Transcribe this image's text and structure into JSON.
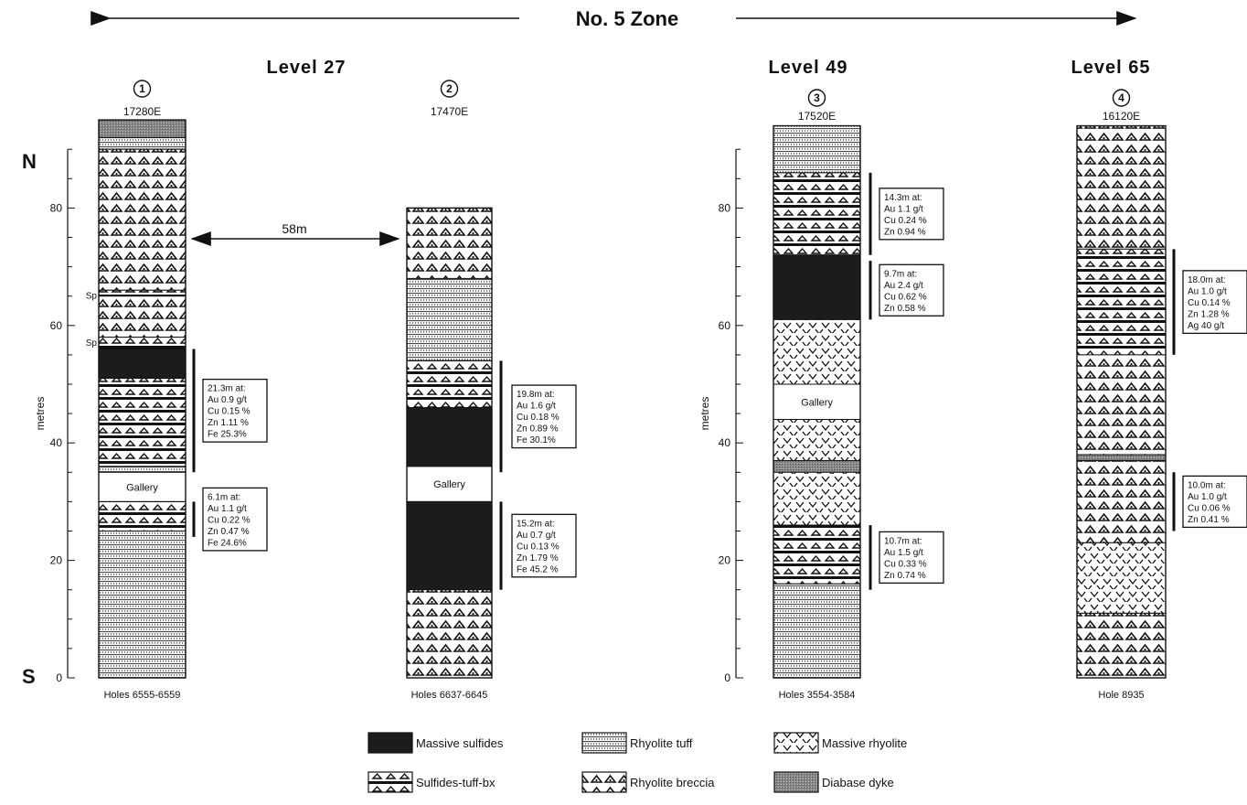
{
  "zone_title": "No. 5 Zone",
  "levels": [
    "Level 27",
    "Level 49",
    "Level 65"
  ],
  "axis": {
    "label": "metres",
    "ticks": [
      "0",
      "20",
      "40",
      "60",
      "80"
    ],
    "top": "N",
    "bottom": "S"
  },
  "columns": [
    {
      "id": 1,
      "circle": "1",
      "easting": "17280E",
      "hole": "Holes  6555-6559",
      "units": [
        {
          "top": 95,
          "bot": 92,
          "type": "diabase"
        },
        {
          "top": 92,
          "bot": 90,
          "type": "tuff"
        },
        {
          "top": 90,
          "bot": 66,
          "type": "breccia"
        },
        {
          "top": 66,
          "bot": 65,
          "type": "sulfbx"
        },
        {
          "top": 65,
          "bot": 58,
          "type": "breccia"
        },
        {
          "top": 58,
          "bot": 56,
          "type": "sulfbx"
        },
        {
          "top": 56,
          "bot": 51,
          "type": "massive"
        },
        {
          "top": 51,
          "bot": 36,
          "type": "sulfbx"
        },
        {
          "top": 36,
          "bot": 35,
          "type": "tuff"
        },
        {
          "top": 35,
          "bot": 30,
          "type": "gallery"
        },
        {
          "top": 30,
          "bot": 25,
          "type": "sulfbx"
        },
        {
          "top": 25,
          "bot": 0,
          "type": "tuff"
        }
      ],
      "sp": [
        {
          "label": "Sp",
          "at": 65
        },
        {
          "label": "Sp",
          "at": 57
        }
      ],
      "intervals": [
        {
          "top": 56,
          "bot": 35,
          "lines": [
            "21.3m at:",
            "Au 0.9 g/t",
            "Cu 0.15 %",
            "Zn 1.11 %",
            "Fe 25.3%"
          ]
        },
        {
          "top": 30,
          "bot": 24,
          "lines": [
            "6.1m at:",
            "Au 1.1 g/t",
            "Cu 0.22 %",
            "Zn 0.47 %",
            "Fe 24.6%"
          ]
        }
      ]
    },
    {
      "id": 2,
      "circle": "2",
      "easting": "17470E",
      "hole": "Holes  6637-6645",
      "units": [
        {
          "top": 80,
          "bot": 68,
          "type": "breccia"
        },
        {
          "top": 68,
          "bot": 54,
          "type": "tuff"
        },
        {
          "top": 54,
          "bot": 46,
          "type": "sulfbx"
        },
        {
          "top": 46,
          "bot": 36,
          "type": "massive"
        },
        {
          "top": 36,
          "bot": 30,
          "type": "gallery"
        },
        {
          "top": 30,
          "bot": 15,
          "type": "massive"
        },
        {
          "top": 15,
          "bot": 0,
          "type": "breccia"
        }
      ],
      "intervals": [
        {
          "top": 54,
          "bot": 35,
          "lines": [
            "19.8m at:",
            "Au 1.6 g/t",
            "Cu 0.18 %",
            "Zn 0.89 %",
            "Fe 30.1%"
          ]
        },
        {
          "top": 30,
          "bot": 15,
          "lines": [
            "15.2m at:",
            "Au 0.7 g/t",
            "Cu 0.13 %",
            "Zn 1.79 %",
            "Fe 45.2 %"
          ]
        }
      ]
    },
    {
      "id": 3,
      "circle": "3",
      "easting": "17520E",
      "hole": "Holes  3554-3584",
      "units": [
        {
          "top": 94,
          "bot": 86,
          "type": "tuff"
        },
        {
          "top": 86,
          "bot": 72,
          "type": "sulfbx"
        },
        {
          "top": 72,
          "bot": 61,
          "type": "massive"
        },
        {
          "top": 61,
          "bot": 50,
          "type": "rhyolite"
        },
        {
          "top": 50,
          "bot": 44,
          "type": "gallery"
        },
        {
          "top": 44,
          "bot": 37,
          "type": "rhyolite"
        },
        {
          "top": 37,
          "bot": 35,
          "type": "diabase"
        },
        {
          "top": 35,
          "bot": 26,
          "type": "rhyolite"
        },
        {
          "top": 26,
          "bot": 16,
          "type": "sulfbx"
        },
        {
          "top": 16,
          "bot": 0,
          "type": "tuff"
        }
      ],
      "intervals": [
        {
          "top": 86,
          "bot": 72,
          "lines": [
            "14.3m at:",
            "Au 1.1 g/t",
            "Cu 0.24 %",
            "Zn 0.94 %"
          ]
        },
        {
          "top": 71,
          "bot": 61,
          "lines": [
            "9.7m at:",
            "Au 2.4 g/t",
            "Cu 0.62 %",
            "Zn 0.58 %"
          ]
        },
        {
          "top": 26,
          "bot": 15,
          "lines": [
            "10.7m at:",
            "Au 1.5 g/t",
            "Cu 0.33 %",
            "Zn 0.74 %"
          ]
        }
      ]
    },
    {
      "id": 4,
      "circle": "4",
      "easting": "16120E",
      "hole": "Hole  8935",
      "units": [
        {
          "top": 94,
          "bot": 73,
          "type": "breccia"
        },
        {
          "top": 73,
          "bot": 55,
          "type": "sulfbx"
        },
        {
          "top": 55,
          "bot": 38,
          "type": "breccia"
        },
        {
          "top": 38,
          "bot": 37,
          "type": "diabase"
        },
        {
          "top": 37,
          "bot": 23,
          "type": "breccia"
        },
        {
          "top": 23,
          "bot": 11,
          "type": "rhyolite"
        },
        {
          "top": 11,
          "bot": 0,
          "type": "breccia"
        }
      ],
      "intervals": [
        {
          "top": 73,
          "bot": 55,
          "lines": [
            "18.0m at:",
            "Au 1.0 g/t",
            "Cu 0.14 %",
            "Zn 1.28 %",
            "Ag 40 g/t"
          ]
        },
        {
          "top": 35,
          "bot": 25,
          "lines": [
            "10.0m at:",
            "Au 1.0 g/t",
            "Cu 0.06 %",
            "Zn 0.41 %"
          ]
        }
      ]
    }
  ],
  "distance_label": "58m",
  "gallery_label": "Gallery",
  "legend": [
    {
      "type": "massive",
      "label": "Massive sulfides"
    },
    {
      "type": "tuff",
      "label": "Rhyolite  tuff"
    },
    {
      "type": "rhyolite",
      "label": "Massive  rhyolite"
    },
    {
      "type": "sulfbx",
      "label": "Sulfides-tuff-bx"
    },
    {
      "type": "breccia",
      "label": "Rhyolite  breccia"
    },
    {
      "type": "diabase",
      "label": "Diabase  dyke"
    }
  ]
}
